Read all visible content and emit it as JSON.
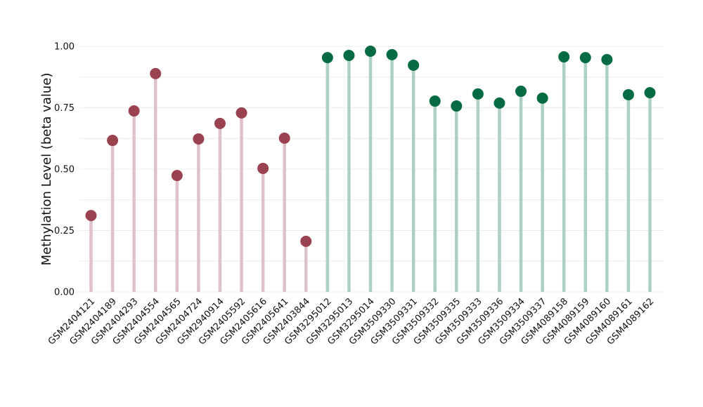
{
  "chart_data": {
    "type": "lollipop",
    "title": "",
    "xlabel": "",
    "ylabel": "Methylation Level (beta value)",
    "ylim": [
      0,
      1
    ],
    "yticks": [
      "0.00",
      "0.25",
      "0.50",
      "0.75",
      "1.00"
    ],
    "grid": true,
    "colors": {
      "group1_point": "#9b4250",
      "group1_stem": "#dfc1c9",
      "group2_point": "#046b43",
      "group2_stem": "#acd0c2"
    },
    "categories": [
      "GSM2404121",
      "GSM2404189",
      "GSM2404293",
      "GSM2404554",
      "GSM2404565",
      "GSM2404724",
      "GSM2940914",
      "GSM2405592",
      "GSM2405616",
      "GSM2405641",
      "GSM2403844",
      "GSM3295012",
      "GSM3295013",
      "GSM3295014",
      "GSM3509330",
      "GSM3509331",
      "GSM3509332",
      "GSM3509335",
      "GSM3509333",
      "GSM3509336",
      "GSM3509334",
      "GSM3509337",
      "GSM4089158",
      "GSM4089159",
      "GSM4089160",
      "GSM4089161",
      "GSM4089162"
    ],
    "values": [
      0.311,
      0.617,
      0.737,
      0.889,
      0.474,
      0.623,
      0.686,
      0.729,
      0.503,
      0.626,
      0.206,
      0.954,
      0.963,
      0.98,
      0.966,
      0.923,
      0.777,
      0.757,
      0.806,
      0.769,
      0.817,
      0.789,
      0.957,
      0.954,
      0.946,
      0.803,
      0.811
    ],
    "groups": [
      1,
      1,
      1,
      1,
      1,
      1,
      1,
      1,
      1,
      1,
      1,
      2,
      2,
      2,
      2,
      2,
      2,
      2,
      2,
      2,
      2,
      2,
      2,
      2,
      2,
      2,
      2
    ]
  }
}
